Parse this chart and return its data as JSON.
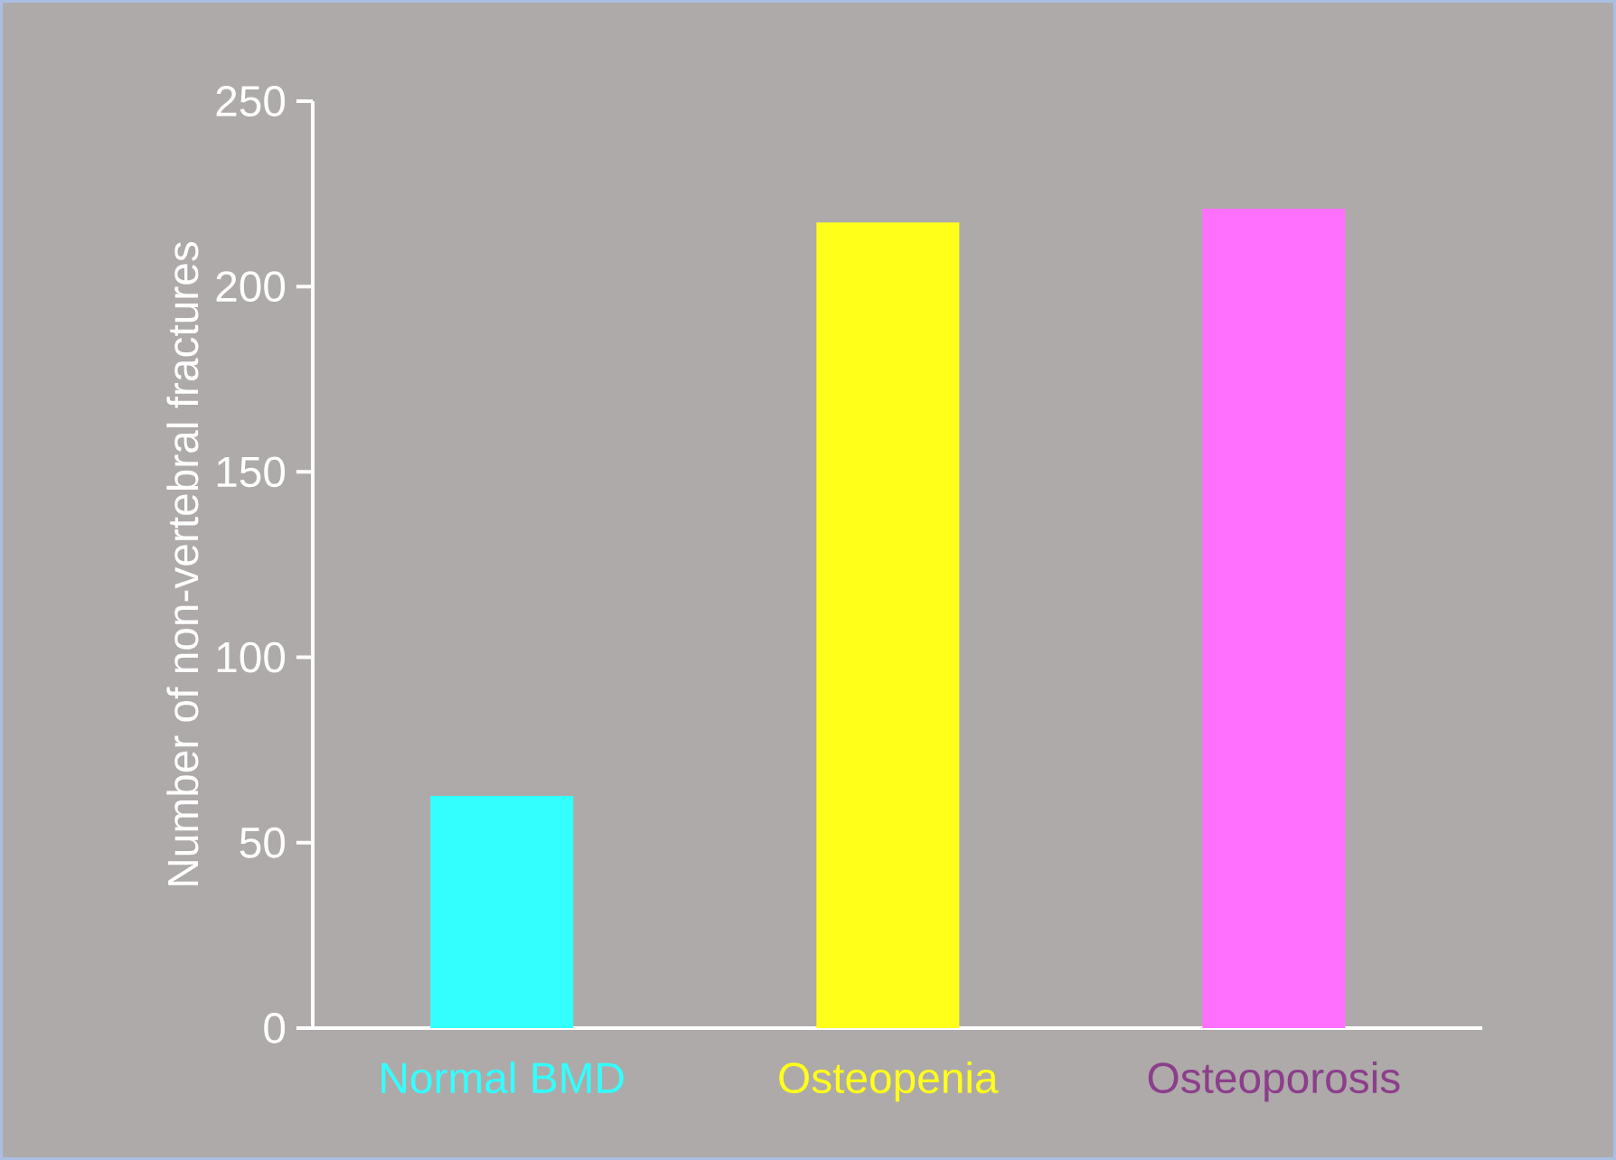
{
  "chart_data": {
    "type": "bar",
    "ylabel": "Number of non-vertebral fractures",
    "categories": [
      "Normal BMD",
      "Osteopenia",
      "Osteoporosis"
    ],
    "values": [
      62.6,
      217.3,
      221
    ],
    "colors": [
      "#33ffff",
      "#ffff1a",
      "#ff70ff"
    ],
    "ylim": [
      0,
      250
    ],
    "yticks": [
      0,
      50,
      100,
      150,
      200,
      250
    ]
  }
}
